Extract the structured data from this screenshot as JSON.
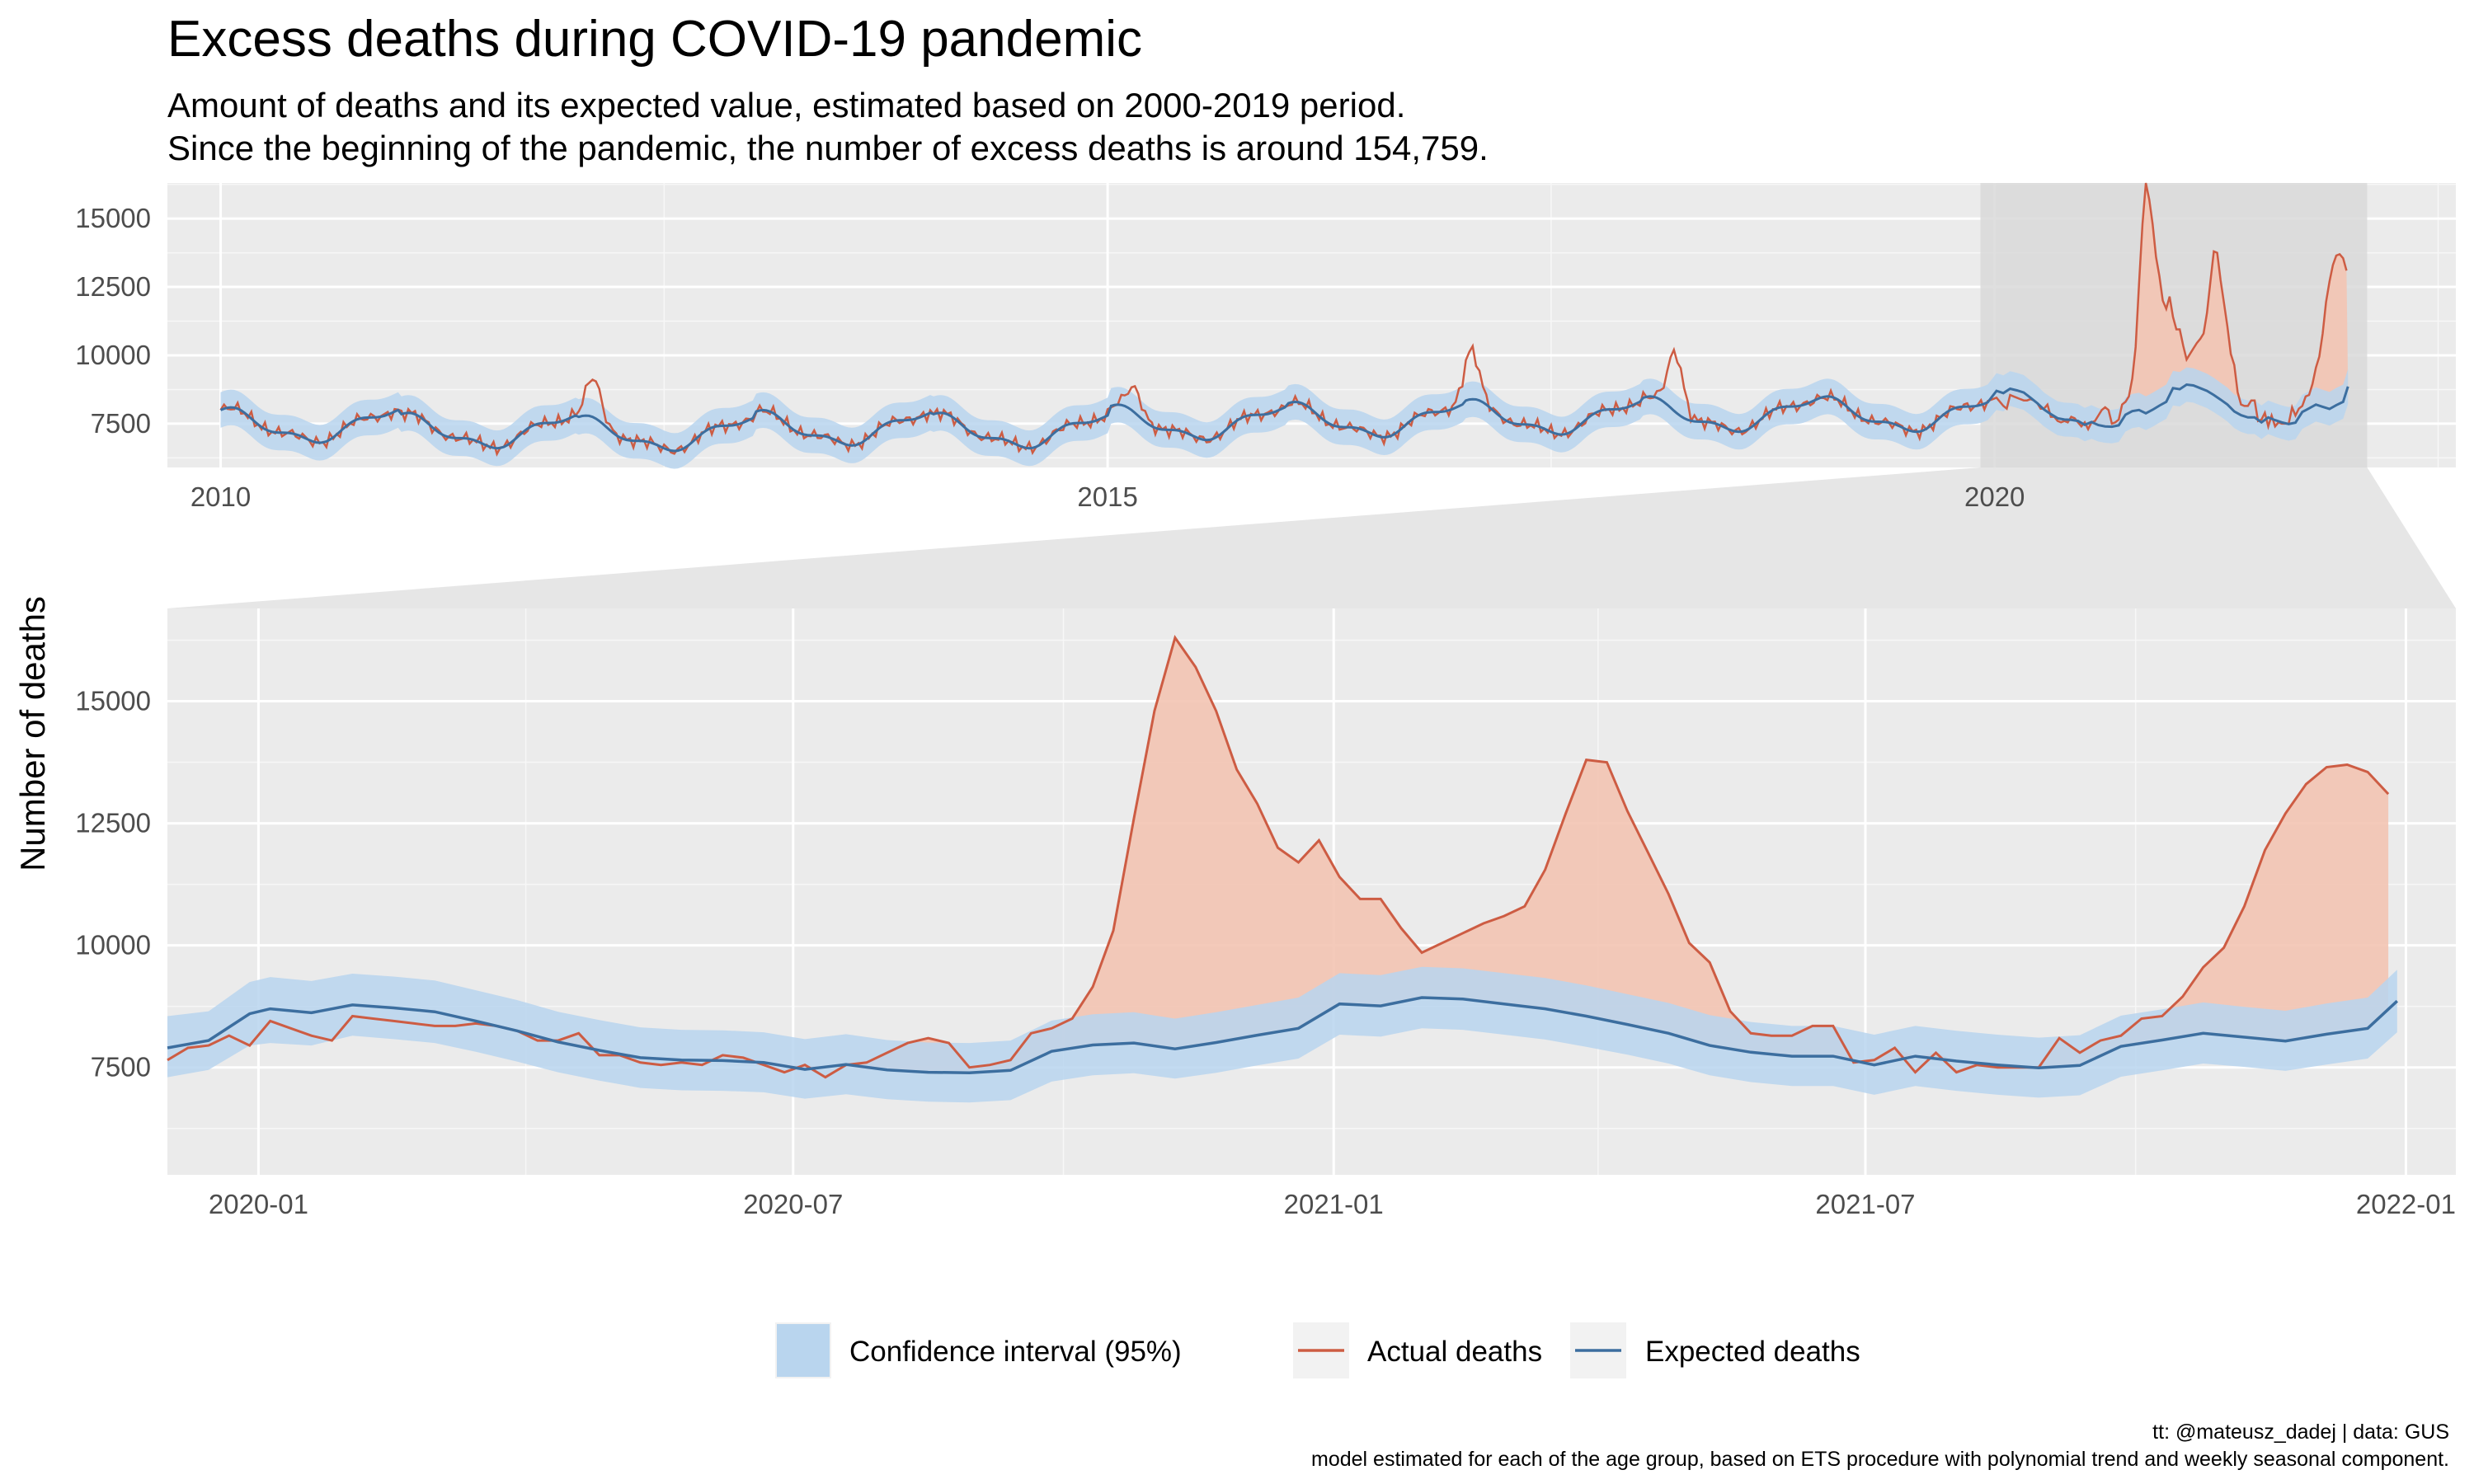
{
  "chart": {
    "title": "Excess deaths during COVID-19 pandemic",
    "subtitle_lines": [
      "Amount of deaths and its expected value, estimated based on 2000-2019 period.",
      "Since the beginning of the pandemic, the number of excess deaths is around 154,759."
    ],
    "ylabel": "Number of deaths",
    "caption_lines": [
      "tt: @mateusz_dadej | data: GUS",
      "model estimated for each of the age group, based on ETS procedure with polynomial trend and weekly seasonal component."
    ]
  },
  "legend": {
    "items": [
      {
        "label": "Confidence interval (95%)",
        "kind": "band",
        "color": "#b9d5ee"
      },
      {
        "label": "Actual deaths",
        "kind": "line",
        "color": "#cd5c43"
      },
      {
        "label": "Expected deaths",
        "kind": "line",
        "color": "#3c6e9f"
      }
    ]
  },
  "colors": {
    "panel_bg": "#ebebeb",
    "grid": "#ffffff",
    "actual": "#cd5c43",
    "expected": "#3c6e9f",
    "ci_band": "#b9d5ee",
    "excess_fill": "#f3c4b2",
    "zoom_highlight": "#d9d9d9",
    "connector": "#e6e6e6"
  },
  "chart_data": [
    {
      "type": "line",
      "panel": "overview",
      "x_unit": "year",
      "x_ticks": [
        2010,
        2015,
        2020
      ],
      "x_tick_labels": [
        "2010",
        "2015",
        "2020"
      ],
      "xlim": [
        2009.7,
        2022.6
      ],
      "ylim": [
        5900,
        16300
      ],
      "y_ticks": [
        7500,
        10000,
        12500,
        15000
      ],
      "y_tick_labels": [
        "7500",
        "10000",
        "12500",
        "15000"
      ],
      "zoom_window": [
        2019.92,
        2022.1
      ],
      "seasonal_expected": {
        "x": [
          2010.0,
          2010.08,
          2010.17,
          2010.25,
          2010.33,
          2010.42,
          2010.5,
          2010.58,
          2010.67,
          2010.75,
          2010.83,
          2010.92
        ],
        "note_units": "week-of-year fraction"
      },
      "expected_peaks": [
        {
          "year": 2010,
          "winter_value": 8100
        },
        {
          "year": 2011,
          "winter_value": 7900
        },
        {
          "year": 2012,
          "winter_value": 7800
        },
        {
          "year": 2013,
          "winter_value": 8000
        },
        {
          "year": 2014,
          "winter_value": 7900
        },
        {
          "year": 2015,
          "winter_value": 8200
        },
        {
          "year": 2016,
          "winter_value": 8300
        },
        {
          "year": 2017,
          "winter_value": 8400
        },
        {
          "year": 2018,
          "winter_value": 8500
        },
        {
          "year": 2019,
          "winter_value": 8500
        },
        {
          "year": 2020,
          "winter_value": 8700
        },
        {
          "year": 2021,
          "winter_value": 8900
        }
      ],
      "actual_spikes": [
        {
          "x": 2012.1,
          "y": 9200
        },
        {
          "x": 2015.15,
          "y": 8800
        },
        {
          "x": 2017.05,
          "y": 10200
        },
        {
          "x": 2018.2,
          "y": 10100
        },
        {
          "x": 2020.85,
          "y": 16200
        },
        {
          "x": 2021.25,
          "y": 13800
        },
        {
          "x": 2021.9,
          "y": 13700
        }
      ]
    },
    {
      "type": "line",
      "panel": "zoom",
      "x_unit": "month",
      "xlim": [
        "2019-12-01",
        "2022-01-18"
      ],
      "x_ticks": [
        "2020-01-01",
        "2020-07-01",
        "2021-01-01",
        "2021-07-01",
        "2022-01-01"
      ],
      "x_tick_labels": [
        "2020-01",
        "2020-07",
        "2021-01",
        "2021-07",
        "2022-01"
      ],
      "ylim": [
        5300,
        16900
      ],
      "y_ticks": [
        7500,
        10000,
        12500,
        15000
      ],
      "y_tick_labels": [
        "7500",
        "10000",
        "12500",
        "15000"
      ],
      "series": [
        {
          "name": "Actual deaths",
          "x": [
            "2019-12-01",
            "2019-12-08",
            "2019-12-15",
            "2019-12-22",
            "2019-12-29",
            "2020-01-05",
            "2020-01-12",
            "2020-01-19",
            "2020-01-26",
            "2020-02-02",
            "2020-02-09",
            "2020-02-16",
            "2020-02-23",
            "2020-03-01",
            "2020-03-08",
            "2020-03-15",
            "2020-03-22",
            "2020-03-29",
            "2020-04-05",
            "2020-04-12",
            "2020-04-19",
            "2020-04-26",
            "2020-05-03",
            "2020-05-10",
            "2020-05-17",
            "2020-05-24",
            "2020-05-31",
            "2020-06-07",
            "2020-06-14",
            "2020-06-21",
            "2020-06-28",
            "2020-07-05",
            "2020-07-12",
            "2020-07-19",
            "2020-07-26",
            "2020-08-02",
            "2020-08-09",
            "2020-08-16",
            "2020-08-23",
            "2020-08-30",
            "2020-09-06",
            "2020-09-13",
            "2020-09-20",
            "2020-09-27",
            "2020-10-04",
            "2020-10-11",
            "2020-10-18",
            "2020-10-25",
            "2020-11-01",
            "2020-11-08",
            "2020-11-15",
            "2020-11-22",
            "2020-11-29",
            "2020-12-06",
            "2020-12-13",
            "2020-12-20",
            "2020-12-27",
            "2021-01-03",
            "2021-01-10",
            "2021-01-17",
            "2021-01-24",
            "2021-01-31",
            "2021-02-07",
            "2021-02-14",
            "2021-02-21",
            "2021-02-28",
            "2021-03-07",
            "2021-03-14",
            "2021-03-21",
            "2021-03-28",
            "2021-04-04",
            "2021-04-11",
            "2021-04-18",
            "2021-04-25",
            "2021-05-02",
            "2021-05-09",
            "2021-05-16",
            "2021-05-23",
            "2021-05-30",
            "2021-06-06",
            "2021-06-13",
            "2021-06-20",
            "2021-06-27",
            "2021-07-04",
            "2021-07-11",
            "2021-07-18",
            "2021-07-25",
            "2021-08-01",
            "2021-08-08",
            "2021-08-15",
            "2021-08-22",
            "2021-08-29",
            "2021-09-05",
            "2021-09-12",
            "2021-09-19",
            "2021-09-26",
            "2021-10-03",
            "2021-10-10",
            "2021-10-17",
            "2021-10-24",
            "2021-10-31",
            "2021-11-07",
            "2021-11-14",
            "2021-11-21",
            "2021-11-28",
            "2021-12-05",
            "2021-12-12",
            "2021-12-19",
            "2021-12-26"
          ],
          "y": [
            7650,
            7900,
            7950,
            8150,
            7950,
            8450,
            8300,
            8150,
            8050,
            8550,
            8500,
            8450,
            8400,
            8350,
            8350,
            8400,
            8350,
            8250,
            8050,
            8050,
            8200,
            7750,
            7750,
            7600,
            7550,
            7600,
            7550,
            7750,
            7700,
            7550,
            7400,
            7550,
            7300,
            7550,
            7600,
            7800,
            8000,
            8100,
            8000,
            7500,
            7550,
            7650,
            8200,
            8300,
            8500,
            9150,
            10300,
            12600,
            14800,
            16300,
            15700,
            14800,
            13600,
            12900,
            12000,
            11700,
            12150,
            11400,
            10950,
            10950,
            10350,
            9850,
            10050,
            10250,
            10450,
            10600,
            10800,
            11550,
            12700,
            13800,
            13750,
            12750,
            11900,
            11050,
            10050,
            9650,
            8650,
            8200,
            8150,
            8150,
            8350,
            8350,
            7600,
            7650,
            7900,
            7400,
            7800,
            7400,
            7550,
            7500,
            7500,
            7500,
            8100,
            7800,
            8050,
            8150,
            8500,
            8550,
            8950,
            9550,
            9950,
            10800,
            11950,
            12700,
            13300,
            13650,
            13700,
            13550,
            13100
          ],
          "color": "#cd5c43"
        },
        {
          "name": "Expected deaths",
          "x": [
            "2019-12-01",
            "2019-12-15",
            "2019-12-29",
            "2020-01-05",
            "2020-01-19",
            "2020-02-02",
            "2020-02-16",
            "2020-03-01",
            "2020-03-15",
            "2020-03-29",
            "2020-04-12",
            "2020-04-26",
            "2020-05-10",
            "2020-05-24",
            "2020-06-07",
            "2020-06-21",
            "2020-07-05",
            "2020-07-19",
            "2020-08-02",
            "2020-08-16",
            "2020-08-30",
            "2020-09-13",
            "2020-09-27",
            "2020-10-11",
            "2020-10-25",
            "2020-11-08",
            "2020-11-22",
            "2020-12-06",
            "2020-12-20",
            "2021-01-03",
            "2021-01-17",
            "2021-01-31",
            "2021-02-14",
            "2021-02-28",
            "2021-03-14",
            "2021-03-28",
            "2021-04-11",
            "2021-04-25",
            "2021-05-09",
            "2021-05-23",
            "2021-06-06",
            "2021-06-20",
            "2021-07-04",
            "2021-07-18",
            "2021-08-01",
            "2021-08-15",
            "2021-08-29",
            "2021-09-12",
            "2021-09-26",
            "2021-10-10",
            "2021-10-24",
            "2021-11-07",
            "2021-11-21",
            "2021-12-05",
            "2021-12-19",
            "2021-12-29"
          ],
          "y": [
            7900,
            8050,
            8600,
            8700,
            8620,
            8780,
            8720,
            8640,
            8450,
            8250,
            8020,
            7850,
            7700,
            7650,
            7640,
            7600,
            7460,
            7560,
            7450,
            7400,
            7390,
            7440,
            7830,
            7960,
            8000,
            7880,
            8010,
            8160,
            8300,
            8800,
            8760,
            8930,
            8900,
            8800,
            8700,
            8550,
            8380,
            8200,
            7950,
            7810,
            7730,
            7730,
            7550,
            7730,
            7630,
            7550,
            7490,
            7540,
            7930,
            8060,
            8200,
            8120,
            8040,
            8180,
            8300,
            8860
          ],
          "color": "#3c6e9f"
        },
        {
          "name": "Confidence interval (95%)",
          "x": [
            "2019-12-01",
            "2019-12-15",
            "2019-12-29",
            "2020-01-05",
            "2020-01-19",
            "2020-02-02",
            "2020-02-16",
            "2020-03-01",
            "2020-03-15",
            "2020-03-29",
            "2020-04-12",
            "2020-04-26",
            "2020-05-10",
            "2020-05-24",
            "2020-06-07",
            "2020-06-21",
            "2020-07-05",
            "2020-07-19",
            "2020-08-02",
            "2020-08-16",
            "2020-08-30",
            "2020-09-13",
            "2020-09-27",
            "2020-10-11",
            "2020-10-25",
            "2020-11-08",
            "2020-11-22",
            "2020-12-06",
            "2020-12-20",
            "2021-01-03",
            "2021-01-17",
            "2021-01-31",
            "2021-02-14",
            "2021-02-28",
            "2021-03-14",
            "2021-03-28",
            "2021-04-11",
            "2021-04-25",
            "2021-05-09",
            "2021-05-23",
            "2021-06-06",
            "2021-06-20",
            "2021-07-04",
            "2021-07-18",
            "2021-08-01",
            "2021-08-15",
            "2021-08-29",
            "2021-09-12",
            "2021-09-26",
            "2021-10-10",
            "2021-10-24",
            "2021-11-07",
            "2021-11-21",
            "2021-12-05",
            "2021-12-19",
            "2021-12-29"
          ],
          "lower": [
            7300,
            7450,
            7950,
            8000,
            7950,
            8150,
            8080,
            8000,
            7820,
            7620,
            7400,
            7230,
            7080,
            7030,
            7020,
            6990,
            6860,
            6950,
            6850,
            6800,
            6780,
            6830,
            7210,
            7340,
            7380,
            7270,
            7390,
            7540,
            7680,
            8170,
            8130,
            8300,
            8270,
            8170,
            8070,
            7920,
            7760,
            7580,
            7340,
            7200,
            7120,
            7120,
            6940,
            7120,
            7020,
            6940,
            6880,
            6930,
            7310,
            7440,
            7580,
            7510,
            7430,
            7560,
            7680,
            8220
          ],
          "upper": [
            8550,
            8650,
            9250,
            9350,
            9270,
            9420,
            9360,
            9280,
            9080,
            8880,
            8640,
            8470,
            8320,
            8270,
            8260,
            8220,
            8080,
            8180,
            8060,
            8010,
            8000,
            8050,
            8460,
            8590,
            8630,
            8500,
            8630,
            8780,
            8930,
            9430,
            9390,
            9560,
            9530,
            9430,
            9330,
            9180,
            9000,
            8820,
            8570,
            8430,
            8350,
            8350,
            8170,
            8350,
            8250,
            8170,
            8110,
            8160,
            8560,
            8690,
            8830,
            8740,
            8660,
            8810,
            8930,
            9500
          ],
          "color": "#b9d5ee"
        }
      ]
    }
  ]
}
